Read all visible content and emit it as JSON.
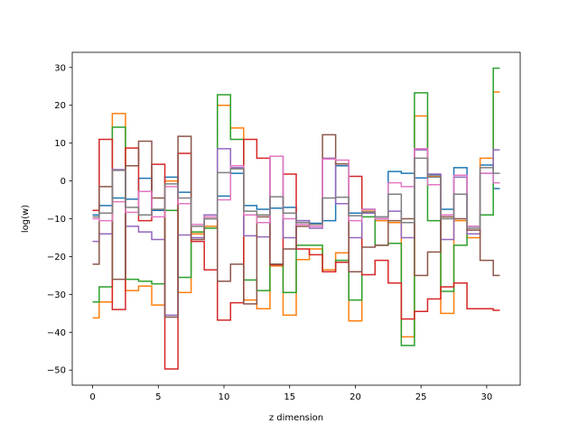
{
  "chart_data": {
    "type": "line",
    "step": "mid",
    "title": "",
    "xlabel": "z dimension",
    "ylabel": "log(w)",
    "xlim": [
      -1.55,
      32.55
    ],
    "ylim": [
      -54,
      34
    ],
    "xticks": [
      0,
      5,
      10,
      15,
      20,
      25,
      30
    ],
    "yticks": [
      -50,
      -40,
      -30,
      -20,
      -10,
      0,
      10,
      20,
      30
    ],
    "grid": false,
    "legend": "none",
    "x": [
      0,
      1,
      2,
      3,
      4,
      5,
      6,
      7,
      8,
      9,
      10,
      11,
      12,
      13,
      14,
      15,
      16,
      17,
      18,
      19,
      20,
      21,
      22,
      23,
      24,
      25,
      26,
      27,
      28,
      29,
      30,
      31
    ],
    "series": [
      {
        "color": "#1f77b4",
        "values": [
          -9.0,
          -6.5,
          -4.5,
          -4.8,
          0.7,
          -7.8,
          1.0,
          -3.0,
          -11.5,
          -9.0,
          -4.0,
          2.0,
          -6.5,
          -7.5,
          -7.2,
          -7.0,
          -10.5,
          -11.2,
          -10.5,
          4.0,
          -8.5,
          -7.5,
          -10.0,
          2.5,
          2.0,
          0.8,
          1.6,
          -7.5,
          3.5,
          -12.0,
          4.2,
          -2.0
        ]
      },
      {
        "color": "#ff7f0e",
        "values": [
          -36.2,
          -32.0,
          17.8,
          -29.0,
          -27.8,
          -32.8,
          0.0,
          -29.5,
          -14.0,
          -12.0,
          20.0,
          14.0,
          -31.5,
          -33.8,
          -22.5,
          -35.5,
          -20.8,
          -18.0,
          -23.5,
          -19.0,
          -37.0,
          -8.0,
          -10.5,
          -11.0,
          -41.2,
          17.2,
          1.2,
          -35.0,
          -10.5,
          -15.0,
          6.0,
          23.5
        ]
      },
      {
        "color": "#2ca02c",
        "values": [
          -32.0,
          -28.0,
          14.2,
          -26.0,
          -26.5,
          -27.2,
          -7.8,
          -25.5,
          -13.5,
          -12.5,
          22.8,
          11.0,
          -26.2,
          -29.0,
          -22.0,
          -29.5,
          -17.0,
          -17.0,
          -24.0,
          -21.0,
          -31.5,
          -9.5,
          -17.0,
          -16.5,
          -43.5,
          23.3,
          -10.5,
          -29.2,
          -17.0,
          -14.0,
          -9.0,
          29.8
        ]
      },
      {
        "color": "#d62728",
        "values": [
          -7.8,
          11.0,
          -34.0,
          8.7,
          -10.5,
          4.4,
          -49.7,
          7.3,
          -16.0,
          -23.5,
          -36.8,
          -32.2,
          11.0,
          6.0,
          -22.2,
          1.8,
          -18.0,
          -19.5,
          -24.0,
          -21.5,
          1.2,
          -24.8,
          -21.0,
          -27.0,
          -36.5,
          -34.5,
          -31.2,
          -28.0,
          -27.0,
          -33.8,
          -33.8,
          -34.2
        ]
      },
      {
        "color": "#9467bd",
        "values": [
          -16.0,
          -14.0,
          3.0,
          -12.0,
          -13.5,
          -15.5,
          -35.5,
          -14.3,
          -15.0,
          -9.0,
          8.5,
          3.5,
          -14.5,
          -14.8,
          6.5,
          -15.0,
          -10.5,
          -12.5,
          6.0,
          -6.0,
          -15.0,
          -8.5,
          -10.0,
          -8.0,
          -15.0,
          8.2,
          1.8,
          -15.5,
          1.0,
          -14.0,
          2.0,
          8.2
        ]
      },
      {
        "color": "#8c564b",
        "values": [
          -22.0,
          -1.5,
          -26.0,
          4.0,
          10.5,
          -4.5,
          -36.0,
          11.8,
          -15.5,
          -10.0,
          -26.5,
          -22.0,
          -32.5,
          -9.5,
          -22.0,
          -18.0,
          -12.0,
          -11.5,
          12.2,
          4.5,
          -24.0,
          -17.5,
          -17.0,
          -10.5,
          -10.0,
          -25.0,
          -18.8,
          -9.5,
          -10.0,
          -13.0,
          -21.0,
          -25.0
        ]
      },
      {
        "color": "#e377c2",
        "values": [
          -10.0,
          -10.5,
          -5.5,
          -8.3,
          -2.8,
          -9.5,
          -1.5,
          -6.0,
          -11.5,
          -9.5,
          -5.0,
          4.0,
          -9.0,
          -11.0,
          6.5,
          -10.0,
          -11.5,
          -12.0,
          5.8,
          5.5,
          -10.5,
          -7.5,
          -10.0,
          -0.5,
          -1.5,
          8.5,
          -1.0,
          -9.0,
          1.5,
          -12.0,
          2.0,
          -0.5
        ]
      },
      {
        "color": "#7f7f7f",
        "values": [
          -9.5,
          -8.5,
          2.8,
          -7.0,
          -9.0,
          -7.5,
          -0.8,
          -4.5,
          -12.0,
          -10.0,
          2.2,
          3.2,
          -8.0,
          -9.0,
          -4.2,
          -8.5,
          -11.0,
          -11.5,
          -4.5,
          -4.3,
          -9.2,
          -8.2,
          -9.5,
          -3.5,
          -11.0,
          6.0,
          1.0,
          -10.0,
          -3.5,
          -12.5,
          3.5,
          2.0
        ]
      }
    ]
  }
}
